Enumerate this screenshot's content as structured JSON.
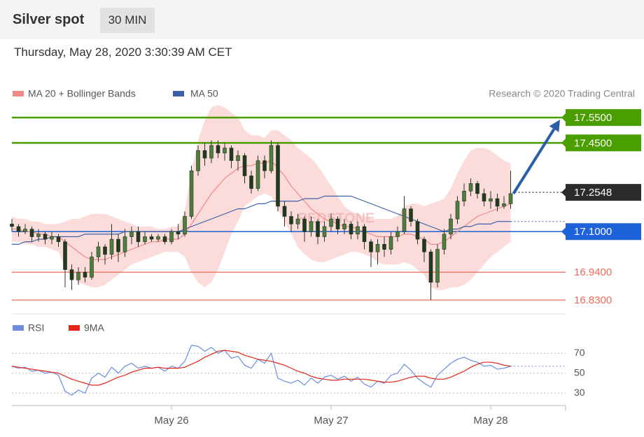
{
  "header": {
    "title": "Silver spot",
    "timeframe": "30 MIN",
    "timestamp": "Thursday, May 28, 2020 3:30:39 AM CET"
  },
  "chart_data": [
    {
      "type": "candlestick",
      "credit": "Research © 2020 Trading Central",
      "watermark": "REDSTONE",
      "ylim": [
        16.8,
        17.6
      ],
      "up_color": "#4f7d3e",
      "down_color": "#22381f",
      "arrow_color": "#2a5ea8",
      "open": [
        17.13,
        17.12,
        17.1,
        17.11,
        17.08,
        17.09,
        17.07,
        17.08,
        17.06,
        16.95,
        16.91,
        16.94,
        16.92,
        17.0,
        17.04,
        17.01,
        17.07,
        17.02,
        17.08,
        17.1,
        17.06,
        17.08,
        17.07,
        17.08,
        17.06,
        17.1,
        17.09,
        17.16,
        17.34,
        17.42,
        17.39,
        17.44,
        17.41,
        17.43,
        17.38,
        17.4,
        17.32,
        17.27,
        17.38,
        17.34,
        17.44,
        17.2,
        17.16,
        17.13,
        17.15,
        17.1,
        17.14,
        17.08,
        17.12,
        17.15,
        17.11,
        17.13,
        17.09,
        17.12,
        17.06,
        17.02,
        17.05,
        17.03,
        17.08,
        17.1,
        17.19,
        17.14,
        17.07,
        17.02,
        16.9,
        17.03,
        17.09,
        17.15,
        17.22,
        17.26,
        17.29,
        17.25,
        17.22,
        17.23,
        17.2,
        17.21
      ],
      "high": [
        17.15,
        17.13,
        17.13,
        17.12,
        17.11,
        17.1,
        17.1,
        17.09,
        17.07,
        16.97,
        16.96,
        16.96,
        17.02,
        17.06,
        17.05,
        17.13,
        17.09,
        17.11,
        17.12,
        17.12,
        17.1,
        17.09,
        17.09,
        17.09,
        17.11,
        17.13,
        17.18,
        17.36,
        17.44,
        17.45,
        17.46,
        17.46,
        17.45,
        17.44,
        17.42,
        17.41,
        17.34,
        17.4,
        17.4,
        17.46,
        17.45,
        17.22,
        17.18,
        17.17,
        17.16,
        17.16,
        17.15,
        17.14,
        17.17,
        17.16,
        17.15,
        17.14,
        17.14,
        17.13,
        17.07,
        17.07,
        17.08,
        17.1,
        17.12,
        17.24,
        17.2,
        17.15,
        17.08,
        17.03,
        17.05,
        17.11,
        17.17,
        17.24,
        17.29,
        17.31,
        17.3,
        17.27,
        17.26,
        17.25,
        17.24,
        17.34
      ],
      "low": [
        17.1,
        17.08,
        17.09,
        17.06,
        17.06,
        17.05,
        17.05,
        17.04,
        16.88,
        16.87,
        16.89,
        16.9,
        16.91,
        16.98,
        16.97,
        16.99,
        16.98,
        17.0,
        17.05,
        17.04,
        17.05,
        17.06,
        17.06,
        17.05,
        17.05,
        17.07,
        17.08,
        17.15,
        17.32,
        17.36,
        17.37,
        17.39,
        17.38,
        17.35,
        17.34,
        17.29,
        17.25,
        17.26,
        17.31,
        17.33,
        17.18,
        17.12,
        17.1,
        17.11,
        17.06,
        17.08,
        17.05,
        17.06,
        17.1,
        17.09,
        17.09,
        17.07,
        17.07,
        17.03,
        16.96,
        16.97,
        17.0,
        17.01,
        17.06,
        17.09,
        17.12,
        17.05,
        16.98,
        16.83,
        16.88,
        17.01,
        17.07,
        17.13,
        17.2,
        17.24,
        17.23,
        17.2,
        17.19,
        17.18,
        17.19,
        17.19
      ],
      "close": [
        17.12,
        17.1,
        17.11,
        17.08,
        17.09,
        17.07,
        17.08,
        17.06,
        16.95,
        16.91,
        16.94,
        16.92,
        17.0,
        17.04,
        17.01,
        17.07,
        17.02,
        17.08,
        17.1,
        17.06,
        17.08,
        17.07,
        17.08,
        17.06,
        17.1,
        17.09,
        17.16,
        17.34,
        17.42,
        17.39,
        17.44,
        17.41,
        17.43,
        17.38,
        17.4,
        17.32,
        17.27,
        17.38,
        17.34,
        17.44,
        17.2,
        17.16,
        17.13,
        17.15,
        17.1,
        17.14,
        17.08,
        17.12,
        17.15,
        17.11,
        17.13,
        17.09,
        17.12,
        17.06,
        17.02,
        17.05,
        17.03,
        17.08,
        17.1,
        17.19,
        17.14,
        17.07,
        17.02,
        16.9,
        17.03,
        17.09,
        17.15,
        17.22,
        17.26,
        17.29,
        17.25,
        17.22,
        17.23,
        17.2,
        17.21,
        17.25
      ],
      "series": [
        {
          "name": "MA 20 + Bollinger Bands",
          "color": "#f08a84",
          "band_color": "#fbd2d2",
          "values": [
            17.11,
            17.11,
            17.1,
            17.1,
            17.09,
            17.09,
            17.08,
            17.08,
            17.06,
            17.04,
            17.02,
            17.0,
            16.99,
            16.99,
            16.99,
            17.0,
            17.01,
            17.02,
            17.03,
            17.04,
            17.05,
            17.06,
            17.06,
            17.07,
            17.07,
            17.07,
            17.09,
            17.13,
            17.17,
            17.21,
            17.25,
            17.28,
            17.31,
            17.33,
            17.35,
            17.36,
            17.36,
            17.37,
            17.37,
            17.38,
            17.35,
            17.32,
            17.28,
            17.25,
            17.22,
            17.19,
            17.17,
            17.15,
            17.14,
            17.13,
            17.12,
            17.12,
            17.11,
            17.1,
            17.09,
            17.08,
            17.08,
            17.08,
            17.08,
            17.09,
            17.09,
            17.08,
            17.07,
            17.05,
            17.05,
            17.06,
            17.08,
            17.1,
            17.12,
            17.14,
            17.16,
            17.17,
            17.18,
            17.19,
            17.2,
            17.21
          ],
          "upper": [
            17.16,
            17.15,
            17.15,
            17.14,
            17.14,
            17.13,
            17.13,
            17.13,
            17.14,
            17.15,
            17.15,
            17.16,
            17.17,
            17.17,
            17.17,
            17.16,
            17.15,
            17.14,
            17.13,
            17.12,
            17.12,
            17.12,
            17.11,
            17.11,
            17.12,
            17.12,
            17.18,
            17.34,
            17.46,
            17.54,
            17.59,
            17.6,
            17.59,
            17.57,
            17.55,
            17.5,
            17.48,
            17.48,
            17.47,
            17.5,
            17.5,
            17.48,
            17.46,
            17.43,
            17.41,
            17.39,
            17.36,
            17.32,
            17.28,
            17.24,
            17.2,
            17.18,
            17.17,
            17.16,
            17.15,
            17.15,
            17.15,
            17.15,
            17.16,
            17.2,
            17.21,
            17.21,
            17.2,
            17.21,
            17.22,
            17.23,
            17.27,
            17.33,
            17.38,
            17.42,
            17.43,
            17.43,
            17.42,
            17.4,
            17.38,
            17.37
          ],
          "lower": [
            17.06,
            17.06,
            17.05,
            17.05,
            17.04,
            17.04,
            17.03,
            17.02,
            16.96,
            16.92,
            16.9,
            16.89,
            16.88,
            16.88,
            16.89,
            16.91,
            16.93,
            16.95,
            16.97,
            16.98,
            16.99,
            17.0,
            17.01,
            17.02,
            17.02,
            17.02,
            17.0,
            16.94,
            16.9,
            16.88,
            16.9,
            16.95,
            17.02,
            17.09,
            17.14,
            17.2,
            17.22,
            17.24,
            17.25,
            17.24,
            17.19,
            17.14,
            17.09,
            17.04,
            17.01,
            16.99,
            16.98,
            16.98,
            16.99,
            17.0,
            17.01,
            17.02,
            17.02,
            17.01,
            17.0,
            16.98,
            16.97,
            16.97,
            16.97,
            16.98,
            16.97,
            16.95,
            16.93,
            16.88,
            16.87,
            16.87,
            16.88,
            16.88,
            16.89,
            16.91,
            16.94,
            16.97,
            17.0,
            17.02,
            17.04,
            17.06
          ]
        },
        {
          "name": "MA 50",
          "color": "#3b5fa8",
          "values": [
            17.05,
            17.05,
            17.06,
            17.06,
            17.07,
            17.07,
            17.08,
            17.08,
            17.08,
            17.08,
            17.08,
            17.09,
            17.09,
            17.09,
            17.09,
            17.09,
            17.09,
            17.1,
            17.1,
            17.1,
            17.1,
            17.1,
            17.1,
            17.1,
            17.1,
            17.1,
            17.11,
            17.12,
            17.13,
            17.14,
            17.15,
            17.16,
            17.17,
            17.18,
            17.19,
            17.19,
            17.2,
            17.21,
            17.21,
            17.22,
            17.22,
            17.22,
            17.22,
            17.22,
            17.23,
            17.23,
            17.23,
            17.24,
            17.24,
            17.24,
            17.24,
            17.24,
            17.23,
            17.22,
            17.21,
            17.2,
            17.19,
            17.18,
            17.17,
            17.16,
            17.15,
            17.14,
            17.13,
            17.12,
            17.11,
            17.1,
            17.11,
            17.11,
            17.12,
            17.12,
            17.13,
            17.13,
            17.13,
            17.14,
            17.14,
            17.14
          ]
        }
      ],
      "levels": [
        {
          "value": 17.55,
          "label": "17.5500",
          "color": "#4a9e00",
          "style": "solid",
          "boxed": true
        },
        {
          "value": 17.45,
          "label": "17.4500",
          "color": "#4a9e00",
          "style": "solid",
          "boxed": true
        },
        {
          "value": 17.2548,
          "label": "17.2548",
          "color": "#2b2b2b",
          "style": "dotted",
          "boxed": true
        },
        {
          "value": 17.1,
          "label": "17.1000",
          "color": "#1d62d8",
          "style": "solid",
          "boxed": true
        },
        {
          "value": 16.94,
          "label": "16.9400",
          "color": "#f06a5a",
          "style": "solid",
          "boxed": false
        },
        {
          "value": 16.83,
          "label": "16.8300",
          "color": "#f06a5a",
          "style": "solid",
          "boxed": false
        }
      ]
    },
    {
      "type": "line",
      "ylim": [
        20,
        80
      ],
      "yticks": [
        30,
        50,
        70
      ],
      "grid": true,
      "categories": [
        null,
        null,
        null,
        null,
        null,
        null,
        null,
        null,
        null,
        null,
        null,
        null,
        null,
        null,
        null,
        null,
        null,
        null,
        null,
        null,
        null,
        null,
        null,
        null,
        "May 26",
        null,
        null,
        null,
        null,
        null,
        null,
        null,
        null,
        null,
        null,
        null,
        null,
        null,
        null,
        null,
        null,
        null,
        null,
        null,
        null,
        null,
        null,
        null,
        "May 27",
        null,
        null,
        null,
        null,
        null,
        null,
        null,
        null,
        null,
        null,
        null,
        null,
        null,
        null,
        null,
        null,
        null,
        null,
        null,
        null,
        null,
        null,
        null,
        "May 28",
        null,
        null,
        null
      ],
      "series": [
        {
          "name": "RSI",
          "color": "#6b8ee0",
          "values": [
            57,
            55,
            56,
            52,
            53,
            50,
            51,
            48,
            32,
            28,
            33,
            30,
            45,
            50,
            46,
            56,
            50,
            57,
            60,
            55,
            57,
            55,
            56,
            52,
            57,
            55,
            62,
            78,
            77,
            72,
            76,
            70,
            73,
            65,
            67,
            58,
            55,
            64,
            60,
            70,
            45,
            42,
            40,
            43,
            38,
            45,
            40,
            46,
            48,
            44,
            47,
            42,
            46,
            39,
            36,
            42,
            40,
            48,
            50,
            59,
            53,
            45,
            40,
            36,
            48,
            54,
            60,
            64,
            66,
            63,
            61,
            57,
            58,
            54,
            55,
            57
          ]
        },
        {
          "name": "9MA",
          "color": "#e5271b",
          "values": [
            57,
            56,
            55,
            54,
            53,
            52,
            51,
            50,
            47,
            44,
            42,
            40,
            38,
            38,
            40,
            43,
            46,
            48,
            51,
            53,
            55,
            55,
            56,
            55,
            55,
            55,
            56,
            59,
            62,
            66,
            69,
            72,
            73,
            72,
            71,
            68,
            66,
            64,
            63,
            62,
            60,
            58,
            55,
            52,
            50,
            47,
            45,
            44,
            43,
            43,
            44,
            44,
            44,
            44,
            43,
            42,
            41,
            41,
            42,
            44,
            46,
            47,
            47,
            45,
            44,
            44,
            46,
            49,
            52,
            56,
            59,
            61,
            61,
            60,
            58,
            57
          ]
        }
      ]
    }
  ]
}
